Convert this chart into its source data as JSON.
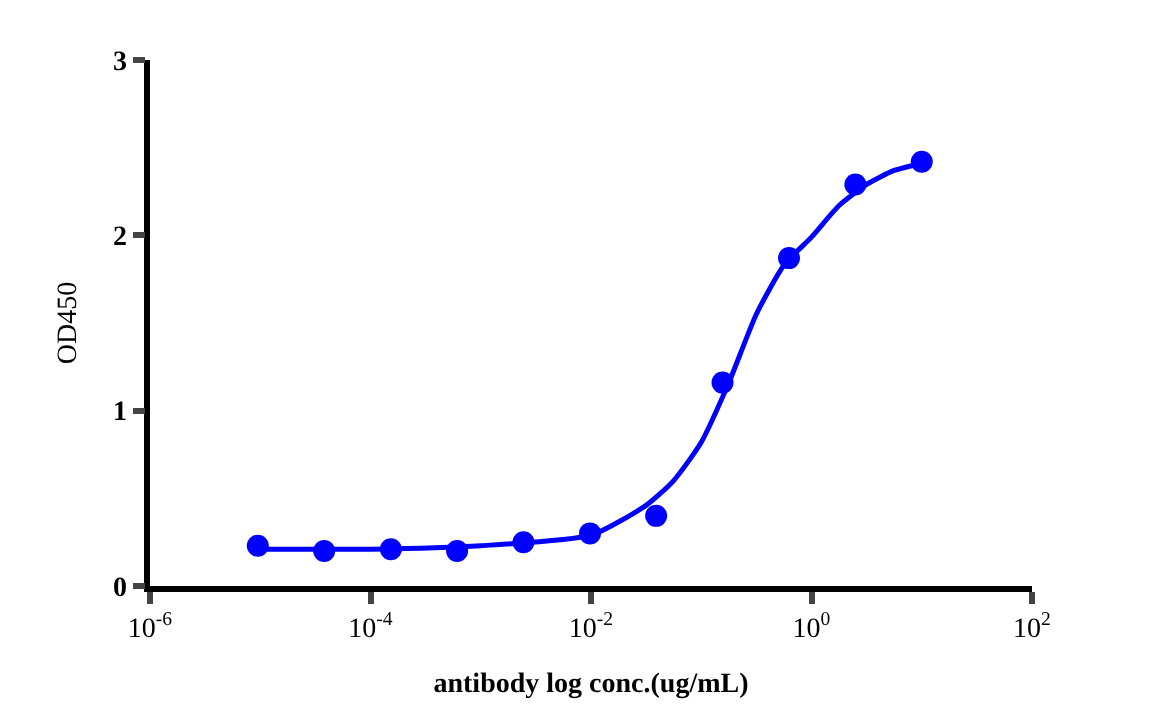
{
  "chart_data": {
    "type": "scatter",
    "xlabel": "antibody log conc.(ug/mL)",
    "ylabel": "OD450",
    "log": "x",
    "xlim": [
      1e-06,
      100
    ],
    "ylim": [
      0,
      3
    ],
    "xticks": [
      {
        "value": 1e-06,
        "label": "10$^{-6}$"
      },
      {
        "value": 0.0001,
        "label": "10$^{-4}$"
      },
      {
        "value": 0.01,
        "label": "10$^{-2}$"
      },
      {
        "value": 1,
        "label": "10$^{0}$"
      },
      {
        "value": 100,
        "label": "10$^{2}$"
      }
    ],
    "yticks": [
      0,
      1,
      2,
      3
    ],
    "series": [
      {
        "color": "#0000ff",
        "marker": "circle",
        "x": [
          9.5e-06,
          3.8e-05,
          0.000153,
          0.00061,
          0.00244,
          0.0098,
          0.039,
          0.156,
          0.625,
          2.5,
          10
        ],
        "values": [
          0.23,
          0.2,
          0.21,
          0.2,
          0.25,
          0.3,
          0.4,
          1.16,
          1.87,
          2.29,
          2.42
        ]
      },
      {
        "type": "line",
        "color": "#0000ff",
        "marker": "none",
        "line_style": "solid",
        "x": [
          9.5e-06,
          0.0001,
          0.001,
          0.01,
          0.0316,
          0.056,
          0.1,
          0.178,
          0.316,
          0.562,
          1,
          1.78,
          3.16,
          5.62,
          10
        ],
        "values": [
          0.21,
          0.21,
          0.23,
          0.29,
          0.46,
          0.6,
          0.82,
          1.16,
          1.55,
          1.83,
          1.99,
          2.17,
          2.29,
          2.37,
          2.41
        ]
      }
    ]
  }
}
